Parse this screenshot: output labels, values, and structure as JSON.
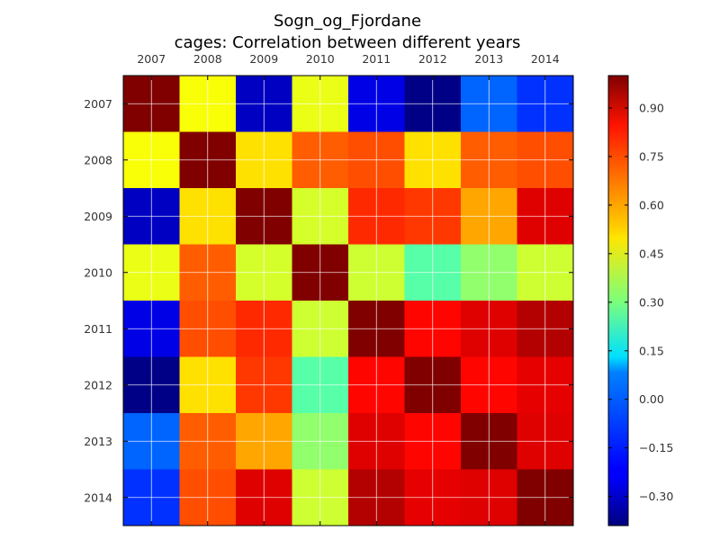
{
  "chart_data": {
    "type": "heatmap",
    "title": "Sogn_og_Fjordane",
    "subtitle": "cages: Correlation between different years",
    "x_categories": [
      "2007",
      "2008",
      "2009",
      "2010",
      "2011",
      "2012",
      "2013",
      "2014"
    ],
    "y_categories": [
      "2007",
      "2008",
      "2009",
      "2010",
      "2011",
      "2012",
      "2013",
      "2014"
    ],
    "colormap": "jet",
    "color_range": [
      -0.39,
      1.0
    ],
    "colorbar_ticks": [
      "0.90",
      "0.75",
      "0.60",
      "0.45",
      "0.30",
      "0.15",
      "0.00",
      "−0.15",
      "−0.30"
    ],
    "values": [
      [
        1.0,
        0.47,
        -0.3,
        0.45,
        -0.25,
        -0.38,
        -0.08,
        -0.15
      ],
      [
        0.47,
        1.0,
        0.52,
        0.7,
        0.72,
        0.52,
        0.7,
        0.72
      ],
      [
        -0.3,
        0.52,
        1.0,
        0.42,
        0.77,
        0.75,
        0.6,
        0.87
      ],
      [
        0.45,
        0.7,
        0.42,
        1.0,
        0.41,
        0.25,
        0.33,
        0.41
      ],
      [
        -0.25,
        0.72,
        0.77,
        0.41,
        1.0,
        0.82,
        0.87,
        0.93
      ],
      [
        -0.38,
        0.52,
        0.75,
        0.25,
        0.82,
        1.0,
        0.82,
        0.86
      ],
      [
        -0.08,
        0.7,
        0.6,
        0.33,
        0.87,
        0.82,
        1.0,
        0.87
      ],
      [
        -0.15,
        0.72,
        0.87,
        0.41,
        0.93,
        0.86,
        0.87,
        1.0
      ]
    ],
    "grid": true
  }
}
